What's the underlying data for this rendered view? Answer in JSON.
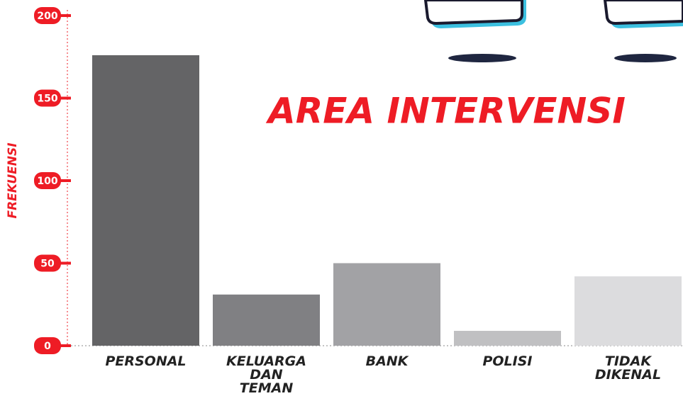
{
  "chart_data": {
    "type": "bar",
    "title": "AREA INTERVENSI",
    "y_label": "FREKUENSI",
    "categories": [
      "PERSONAL",
      "KELUARGA DAN TEMAN",
      "BANK",
      "POLISI",
      "TIDAK DIKENAL"
    ],
    "values": [
      176,
      31,
      50,
      9,
      42
    ],
    "colors": [
      "#646466",
      "#808083",
      "#a2a2a5",
      "#c0c0c2",
      "#dcdcde"
    ],
    "ylim": [
      0,
      200
    ],
    "yticks": [
      0,
      50,
      100,
      150,
      200
    ],
    "accent": "#ee1c25"
  }
}
